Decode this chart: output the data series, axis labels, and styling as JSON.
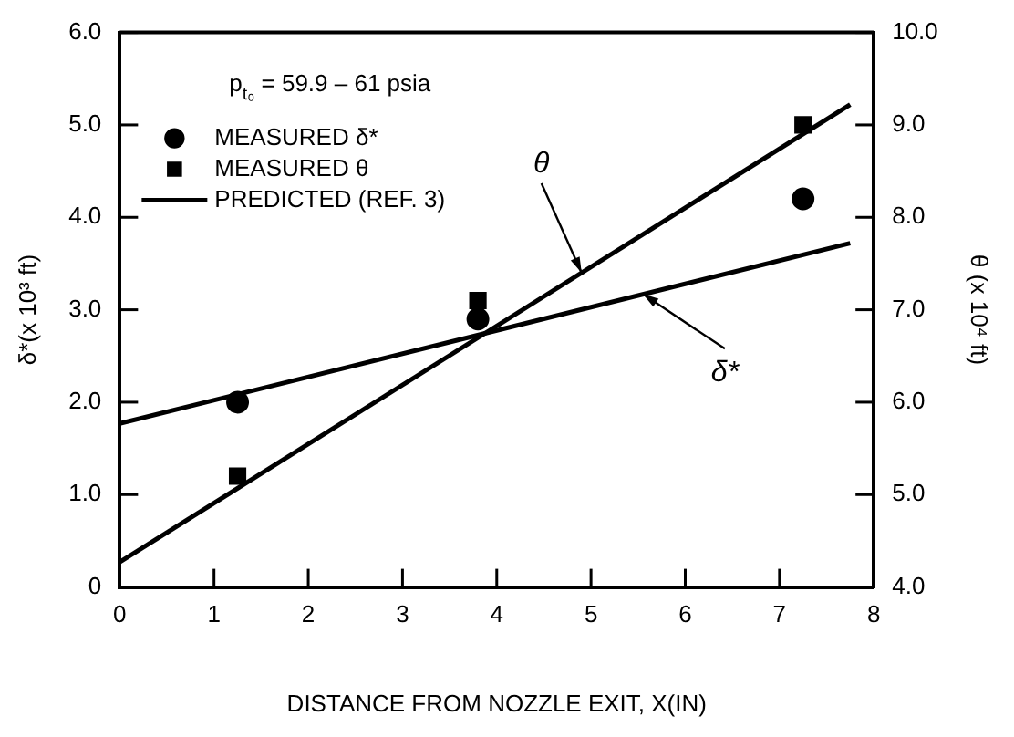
{
  "chart_data": {
    "type": "scatter",
    "xlabel": "DISTANCE FROM NOZZLE EXIT, X(IN)",
    "ylabel": "δ*(x 10³ ft)",
    "y2label": "θ (x 10⁴ ft)",
    "xlim": [
      0,
      8
    ],
    "xticks": [
      0,
      1,
      2,
      3,
      4,
      5,
      6,
      7,
      8
    ],
    "ylim": [
      0,
      6
    ],
    "yticks": [
      0,
      {
        "value": 1,
        "label": "1.0"
      },
      {
        "value": 2,
        "label": "2.0"
      },
      {
        "value": 3,
        "label": "3.0"
      },
      {
        "value": 4,
        "label": "4.0"
      },
      {
        "value": 5,
        "label": "5.0"
      },
      {
        "value": 6,
        "label": "6.0"
      }
    ],
    "y2lim": [
      4,
      10
    ],
    "y2ticks": [
      {
        "value": 4,
        "label": "4.0"
      },
      {
        "value": 5,
        "label": "5.0"
      },
      {
        "value": 6,
        "label": "6.0"
      },
      {
        "value": 7,
        "label": "7.0"
      },
      {
        "value": 8,
        "label": "8.0"
      },
      {
        "value": 9,
        "label": "9.0"
      },
      {
        "value": 10,
        "label": "10.0"
      }
    ],
    "grid": false,
    "legend": "top left",
    "annotations": [
      "p$_{t₀}$ = 59.9 – 61 psia",
      {
        "text": "θ",
        "x": 4.9,
        "y": 3.4
      },
      {
        "text": "δ*",
        "x": 5.55,
        "y": 3.17
      }
    ],
    "series": [
      {
        "name": "MEASURED δ*",
        "marker": "circle",
        "color": "#000000",
        "x": [
          1.25,
          3.8,
          7.25
        ],
        "values": [
          2.0,
          2.9,
          4.2
        ]
      },
      {
        "name": "MEASURED θ",
        "marker": "square",
        "axis": "y2",
        "color": "#000000",
        "x": [
          1.25,
          3.8,
          7.25
        ],
        "values": [
          5.2,
          7.1,
          9.0
        ]
      },
      {
        "name": "PREDICTED (REF. 3)",
        "type": "line",
        "color": "#000000",
        "x": [
          0,
          7.75
        ],
        "values": [
          1.77,
          3.72
        ]
      },
      {
        "type": "line",
        "axis": "y2",
        "color": "#000000",
        "x": [
          0,
          7.75
        ],
        "values": [
          4.27,
          9.22
        ]
      }
    ]
  }
}
